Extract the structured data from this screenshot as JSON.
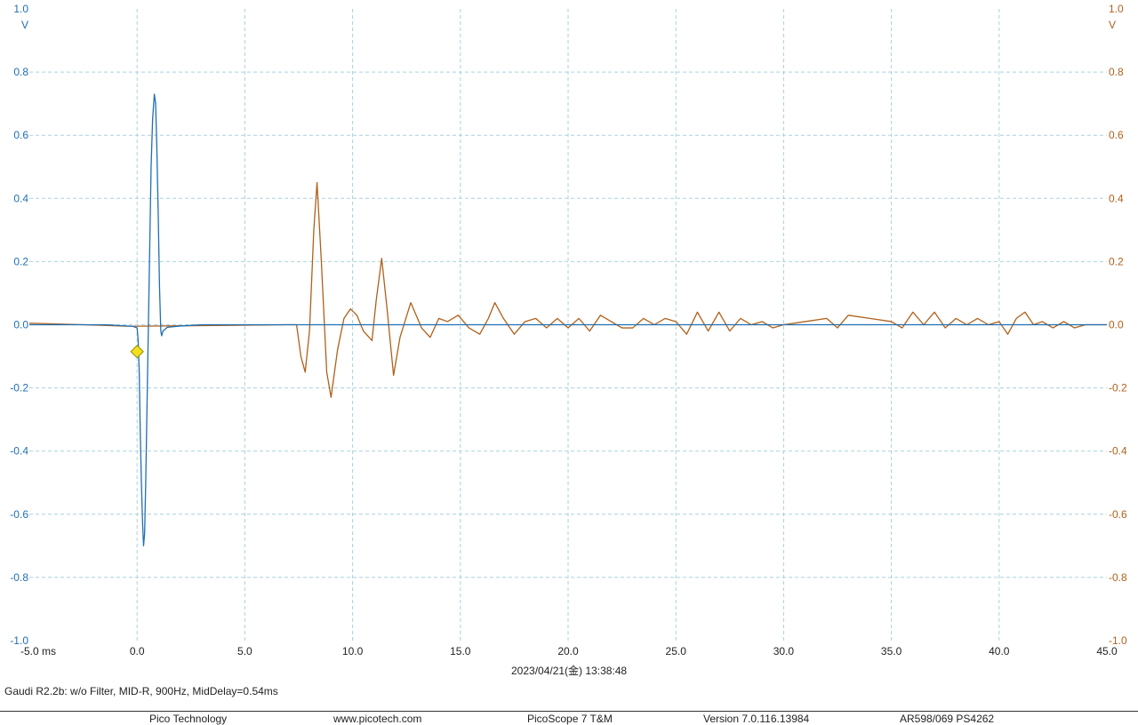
{
  "chart_data": {
    "type": "line",
    "x_unit": "ms",
    "xlim": [
      -5.0,
      45.0
    ],
    "x_ticks": [
      "-5.0 ms",
      "0.0",
      "5.0",
      "10.0",
      "15.0",
      "20.0",
      "25.0",
      "30.0",
      "35.0",
      "40.0",
      "45.0"
    ],
    "left_axis": {
      "unit": "V",
      "ylim": [
        -1.0,
        1.0
      ],
      "ticks": [
        "1.0",
        "0.8",
        "0.6",
        "0.4",
        "0.2",
        "0.0",
        "-0.2",
        "-0.4",
        "-0.6",
        "-0.8",
        "-1.0"
      ],
      "color": "#1f6fb4"
    },
    "right_axis": {
      "unit": "V",
      "ylim": [
        -1.0,
        1.0
      ],
      "ticks": [
        "1.0",
        "0.8",
        "0.6",
        "0.4",
        "0.2",
        "0.0",
        "-0.2",
        "-0.4",
        "-0.6",
        "-0.8",
        "-1.0"
      ],
      "color": "#b0601a"
    },
    "grid": true,
    "grid_color": "#a9d2dc",
    "trigger_marker": {
      "x": 0.0,
      "y": -0.085,
      "color": "#f0e020"
    },
    "series": [
      {
        "axis": "left",
        "color": "#1f6fb4",
        "points": [
          [
            -5.0,
            0.0
          ],
          [
            -1.5,
            0.0
          ],
          [
            -0.2,
            -0.005
          ],
          [
            0.0,
            -0.01
          ],
          [
            0.05,
            -0.05
          ],
          [
            0.1,
            -0.15
          ],
          [
            0.15,
            -0.35
          ],
          [
            0.2,
            -0.5
          ],
          [
            0.25,
            -0.62
          ],
          [
            0.3,
            -0.7
          ],
          [
            0.35,
            -0.66
          ],
          [
            0.4,
            -0.5
          ],
          [
            0.45,
            -0.3
          ],
          [
            0.5,
            -0.1
          ],
          [
            0.55,
            0.1
          ],
          [
            0.6,
            0.3
          ],
          [
            0.65,
            0.5
          ],
          [
            0.72,
            0.65
          ],
          [
            0.8,
            0.73
          ],
          [
            0.86,
            0.7
          ],
          [
            0.92,
            0.55
          ],
          [
            0.98,
            0.35
          ],
          [
            1.04,
            0.12
          ],
          [
            1.1,
            -0.02
          ],
          [
            1.14,
            -0.035
          ],
          [
            1.2,
            -0.02
          ],
          [
            1.4,
            -0.008
          ],
          [
            2.0,
            -0.004
          ],
          [
            3.0,
            0.0
          ],
          [
            45.0,
            0.0
          ]
        ]
      },
      {
        "axis": "right",
        "color": "#b0601a",
        "points": [
          [
            -5.0,
            0.005
          ],
          [
            -2.5,
            0.0
          ],
          [
            -0.3,
            -0.005
          ],
          [
            7.0,
            0.0
          ],
          [
            7.4,
            0.0
          ],
          [
            7.6,
            -0.1
          ],
          [
            7.8,
            -0.15
          ],
          [
            8.0,
            -0.02
          ],
          [
            8.2,
            0.3
          ],
          [
            8.35,
            0.45
          ],
          [
            8.55,
            0.2
          ],
          [
            8.8,
            -0.15
          ],
          [
            9.0,
            -0.23
          ],
          [
            9.3,
            -0.08
          ],
          [
            9.6,
            0.02
          ],
          [
            9.9,
            0.05
          ],
          [
            10.2,
            0.03
          ],
          [
            10.5,
            -0.02
          ],
          [
            10.9,
            -0.05
          ],
          [
            11.1,
            0.08
          ],
          [
            11.35,
            0.21
          ],
          [
            11.6,
            0.05
          ],
          [
            11.9,
            -0.16
          ],
          [
            12.2,
            -0.04
          ],
          [
            12.7,
            0.07
          ],
          [
            13.2,
            -0.01
          ],
          [
            13.6,
            -0.04
          ],
          [
            14.0,
            0.02
          ],
          [
            14.4,
            0.01
          ],
          [
            14.9,
            0.03
          ],
          [
            15.4,
            -0.01
          ],
          [
            15.9,
            -0.03
          ],
          [
            16.3,
            0.02
          ],
          [
            16.6,
            0.07
          ],
          [
            17.0,
            0.02
          ],
          [
            17.5,
            -0.03
          ],
          [
            18.0,
            0.01
          ],
          [
            18.5,
            0.02
          ],
          [
            19.0,
            -0.01
          ],
          [
            19.5,
            0.02
          ],
          [
            20.0,
            -0.01
          ],
          [
            20.5,
            0.02
          ],
          [
            21.0,
            -0.02
          ],
          [
            21.5,
            0.03
          ],
          [
            22.0,
            0.01
          ],
          [
            22.5,
            -0.01
          ],
          [
            23.0,
            -0.01
          ],
          [
            23.5,
            0.02
          ],
          [
            24.0,
            0.0
          ],
          [
            24.5,
            0.02
          ],
          [
            25.0,
            0.01
          ],
          [
            25.5,
            -0.03
          ],
          [
            26.0,
            0.04
          ],
          [
            26.5,
            -0.02
          ],
          [
            27.0,
            0.04
          ],
          [
            27.5,
            -0.02
          ],
          [
            28.0,
            0.02
          ],
          [
            28.5,
            0.0
          ],
          [
            29.0,
            0.01
          ],
          [
            29.5,
            -0.01
          ],
          [
            30.0,
            0.0
          ],
          [
            31.0,
            0.01
          ],
          [
            32.0,
            0.02
          ],
          [
            32.5,
            -0.01
          ],
          [
            33.0,
            0.03
          ],
          [
            34.0,
            0.02
          ],
          [
            35.0,
            0.01
          ],
          [
            35.5,
            -0.01
          ],
          [
            36.0,
            0.04
          ],
          [
            36.5,
            0.0
          ],
          [
            37.0,
            0.04
          ],
          [
            37.5,
            -0.01
          ],
          [
            38.0,
            0.02
          ],
          [
            38.5,
            0.0
          ],
          [
            39.0,
            0.02
          ],
          [
            39.5,
            0.0
          ],
          [
            40.0,
            0.01
          ],
          [
            40.4,
            -0.03
          ],
          [
            40.8,
            0.02
          ],
          [
            41.2,
            0.04
          ],
          [
            41.6,
            0.0
          ],
          [
            42.0,
            0.01
          ],
          [
            42.5,
            -0.01
          ],
          [
            43.0,
            0.01
          ],
          [
            43.5,
            -0.01
          ],
          [
            44.0,
            0.0
          ],
          [
            45.0,
            0.0
          ]
        ]
      }
    ]
  },
  "timestamp": "2023/04/21(金) 13:38:48",
  "caption": "Gaudi R2.2b: w/o Filter, MID-R, 900Hz, MidDelay=0.54ms",
  "footer": {
    "company": "Pico Technology",
    "website": "www.picotech.com",
    "product": "PicoScope 7 T&M",
    "version": "Version 7.0.116.13984",
    "device": "AR598/069 PS4262"
  }
}
